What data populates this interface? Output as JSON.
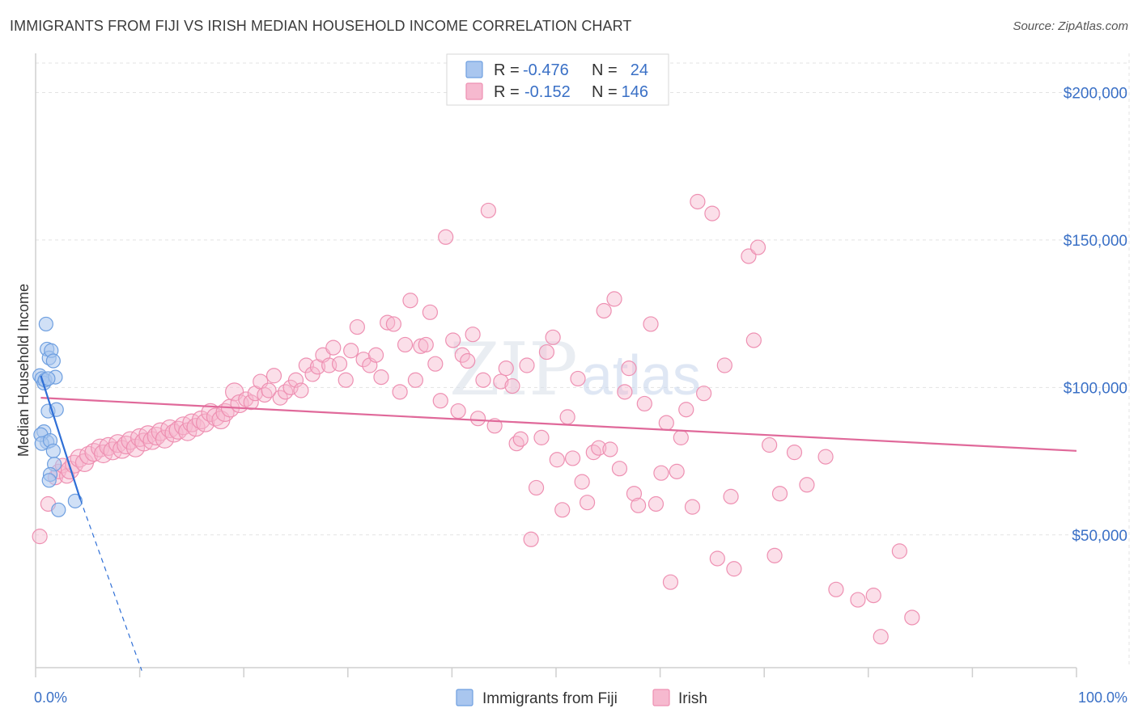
{
  "title": "IMMIGRANTS FROM FIJI VS IRISH MEDIAN HOUSEHOLD INCOME CORRELATION CHART",
  "source": "Source: ZipAtlas.com",
  "watermark": {
    "zip": "ZIP",
    "atlas": "atlas"
  },
  "legend": {
    "r_label": "R =",
    "n_label": "N =",
    "fiji": {
      "r": "-0.476",
      "n": "24"
    },
    "irish": {
      "r": "-0.152",
      "n": "146"
    }
  },
  "colors": {
    "fiji_fill": "#a9c6ef",
    "fiji_stroke": "#6e9fe0",
    "fiji_line": "#2f6fd6",
    "irish_fill": "#f6b9cf",
    "irish_stroke": "#ee90b2",
    "irish_line": "#e0699a",
    "axis_text": "#3a70c6"
  },
  "chart_data": {
    "type": "scatter",
    "title": "IMMIGRANTS FROM FIJI VS IRISH MEDIAN HOUSEHOLD INCOME CORRELATION CHART",
    "xlabel": "",
    "ylabel": "Median Household Income",
    "x_tick_labels": [
      "0.0%",
      "100.0%"
    ],
    "y_tick_labels": [
      "$50,000",
      "$100,000",
      "$150,000",
      "$200,000"
    ],
    "y_ticks": [
      50000,
      100000,
      150000,
      200000
    ],
    "xlim": [
      0,
      100
    ],
    "ylim": [
      5000,
      210000
    ],
    "grid": true,
    "series": [
      {
        "name": "Immigrants from Fiji",
        "r": -0.476,
        "n": 24,
        "trend": {
          "x0": 0.5,
          "y0": 104000,
          "x1": 4.3,
          "y1": 62000,
          "dashed_to_x": 10.2,
          "dashed_to_y": 4000
        },
        "points": [
          [
            0.4,
            104000
          ],
          [
            0.6,
            103000
          ],
          [
            0.8,
            101500
          ],
          [
            0.9,
            102500
          ],
          [
            1.0,
            121500
          ],
          [
            1.1,
            113000
          ],
          [
            1.3,
            110000
          ],
          [
            1.5,
            112500
          ],
          [
            1.7,
            109000
          ],
          [
            1.9,
            103500
          ],
          [
            1.2,
            103000
          ],
          [
            0.8,
            85000
          ],
          [
            1.1,
            81500
          ],
          [
            0.5,
            84000
          ],
          [
            0.6,
            81000
          ],
          [
            1.4,
            82000
          ],
          [
            1.7,
            78500
          ],
          [
            1.2,
            92000
          ],
          [
            2.0,
            92500
          ],
          [
            1.8,
            74000
          ],
          [
            1.4,
            70500
          ],
          [
            1.3,
            68500
          ],
          [
            2.2,
            58500
          ],
          [
            3.8,
            61500
          ]
        ]
      },
      {
        "name": "Irish",
        "r": -0.152,
        "n": 146,
        "trend": {
          "x0": 0.5,
          "y0": 96500,
          "x1": 100,
          "y1": 78500
        },
        "points": [
          [
            0.4,
            49500
          ],
          [
            1.2,
            60500
          ],
          [
            1.9,
            69500
          ],
          [
            2.2,
            71500
          ],
          [
            2.6,
            73500
          ],
          [
            3.0,
            70000
          ],
          [
            3.3,
            72000
          ],
          [
            3.7,
            74000
          ],
          [
            4.2,
            76000
          ],
          [
            4.7,
            74500
          ],
          [
            5.1,
            77000
          ],
          [
            5.6,
            78000
          ],
          [
            6.2,
            79500
          ],
          [
            6.5,
            77500
          ],
          [
            7.0,
            80000
          ],
          [
            7.4,
            78500
          ],
          [
            7.9,
            81000
          ],
          [
            8.3,
            79000
          ],
          [
            8.7,
            80500
          ],
          [
            9.1,
            82000
          ],
          [
            9.6,
            79500
          ],
          [
            10.0,
            83000
          ],
          [
            10.4,
            81500
          ],
          [
            10.8,
            84000
          ],
          [
            11.2,
            82000
          ],
          [
            11.6,
            83500
          ],
          [
            12.0,
            85000
          ],
          [
            12.4,
            82500
          ],
          [
            12.9,
            86000
          ],
          [
            13.3,
            84500
          ],
          [
            13.7,
            85500
          ],
          [
            14.2,
            87000
          ],
          [
            14.6,
            85000
          ],
          [
            15.0,
            88000
          ],
          [
            15.4,
            86500
          ],
          [
            15.9,
            89000
          ],
          [
            16.3,
            88000
          ],
          [
            16.8,
            91500
          ],
          [
            17.3,
            90000
          ],
          [
            17.8,
            89000
          ],
          [
            18.2,
            91500
          ],
          [
            18.7,
            93000
          ],
          [
            19.1,
            98500
          ],
          [
            19.6,
            94500
          ],
          [
            20.2,
            96000
          ],
          [
            20.7,
            95000
          ],
          [
            21.1,
            98000
          ],
          [
            21.6,
            102000
          ],
          [
            22.0,
            97500
          ],
          [
            22.4,
            99000
          ],
          [
            22.9,
            104000
          ],
          [
            23.5,
            96500
          ],
          [
            24.0,
            98500
          ],
          [
            24.5,
            100000
          ],
          [
            25.0,
            102500
          ],
          [
            25.5,
            99000
          ],
          [
            26.0,
            107500
          ],
          [
            26.6,
            104500
          ],
          [
            27.1,
            107000
          ],
          [
            27.6,
            111000
          ],
          [
            28.2,
            107500
          ],
          [
            28.6,
            113500
          ],
          [
            29.2,
            108000
          ],
          [
            29.8,
            102500
          ],
          [
            30.3,
            112500
          ],
          [
            30.9,
            120500
          ],
          [
            31.5,
            109500
          ],
          [
            32.1,
            107500
          ],
          [
            32.7,
            111000
          ],
          [
            33.2,
            103500
          ],
          [
            33.8,
            122000
          ],
          [
            34.4,
            121500
          ],
          [
            35.0,
            98500
          ],
          [
            35.5,
            114500
          ],
          [
            36.0,
            129500
          ],
          [
            36.5,
            102500
          ],
          [
            37.0,
            114000
          ],
          [
            37.5,
            114500
          ],
          [
            37.9,
            125500
          ],
          [
            38.4,
            108000
          ],
          [
            38.9,
            95500
          ],
          [
            39.4,
            151000
          ],
          [
            40.1,
            116000
          ],
          [
            40.6,
            92000
          ],
          [
            41.0,
            111000
          ],
          [
            41.5,
            109000
          ],
          [
            42.0,
            118000
          ],
          [
            42.5,
            89500
          ],
          [
            43.0,
            102500
          ],
          [
            43.5,
            160000
          ],
          [
            44.1,
            87000
          ],
          [
            44.7,
            102000
          ],
          [
            45.2,
            106500
          ],
          [
            45.8,
            100500
          ],
          [
            46.2,
            81000
          ],
          [
            46.6,
            82500
          ],
          [
            47.2,
            107500
          ],
          [
            47.6,
            48500
          ],
          [
            48.1,
            66000
          ],
          [
            48.6,
            83000
          ],
          [
            49.1,
            112000
          ],
          [
            49.7,
            117000
          ],
          [
            50.1,
            75500
          ],
          [
            50.6,
            58500
          ],
          [
            51.1,
            90000
          ],
          [
            51.6,
            76000
          ],
          [
            52.1,
            103000
          ],
          [
            52.5,
            68000
          ],
          [
            53.0,
            61000
          ],
          [
            53.6,
            78000
          ],
          [
            54.1,
            79500
          ],
          [
            54.6,
            126000
          ],
          [
            55.2,
            79000
          ],
          [
            55.6,
            130000
          ],
          [
            56.1,
            72500
          ],
          [
            56.6,
            98500
          ],
          [
            57.0,
            106500
          ],
          [
            57.5,
            64000
          ],
          [
            57.9,
            60000
          ],
          [
            58.5,
            94500
          ],
          [
            59.1,
            121500
          ],
          [
            59.6,
            60500
          ],
          [
            60.1,
            71000
          ],
          [
            60.6,
            88000
          ],
          [
            61.0,
            34000
          ],
          [
            61.6,
            71500
          ],
          [
            62.0,
            83000
          ],
          [
            62.5,
            92500
          ],
          [
            63.1,
            59500
          ],
          [
            63.6,
            163000
          ],
          [
            64.2,
            98000
          ],
          [
            65.0,
            159000
          ],
          [
            65.5,
            42000
          ],
          [
            66.2,
            107500
          ],
          [
            66.8,
            63000
          ],
          [
            67.1,
            38500
          ],
          [
            68.5,
            144500
          ],
          [
            69.0,
            116000
          ],
          [
            69.4,
            147500
          ],
          [
            70.5,
            80500
          ],
          [
            71.0,
            43000
          ],
          [
            71.5,
            64000
          ],
          [
            72.9,
            78000
          ],
          [
            74.1,
            67000
          ],
          [
            75.9,
            76500
          ],
          [
            76.9,
            31500
          ],
          [
            79.0,
            28000
          ],
          [
            80.5,
            29500
          ],
          [
            81.2,
            15500
          ],
          [
            83.0,
            44500
          ],
          [
            84.2,
            22000
          ]
        ]
      }
    ],
    "legend": [
      "Immigrants from Fiji",
      "Irish"
    ]
  }
}
